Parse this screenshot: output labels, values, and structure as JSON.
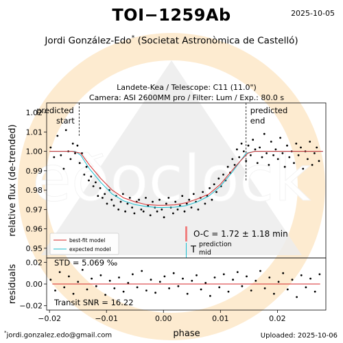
{
  "header": {
    "title": "TOI−1259Ab",
    "date": "2025-10-05",
    "author": "Jordi González-Edo",
    "author_mark": "*",
    "affiliation": "(Societat Astronòmica de Castelló)"
  },
  "subtitle": {
    "line1": "Landete-Kea / Telescope: C11 (11.0\")",
    "line2": "Camera: ASI 2600MM pro / Filter: Lum / Exp.: 80.0 s"
  },
  "footer": {
    "email_mark": "*",
    "email": "jordi.gonzalez.edo@gmail.com",
    "uploaded": "Uploaded: 2025-10-06"
  },
  "watermark": {
    "text": "eðoclock",
    "colors": {
      "orange": "#fde9cc",
      "gray": "#e8e8e8"
    }
  },
  "colors": {
    "best_fit": "#d62728",
    "expected": "#17becf",
    "points": "#000000",
    "oc_bar": "#f08080",
    "vline": "#000000"
  },
  "annotations": {
    "predicted_start": [
      "predicted",
      "start"
    ],
    "predicted_end": [
      "predicted",
      "end"
    ],
    "oc": "O-C = 1.72 ± 1.18 min",
    "tmid_main": "T",
    "tmid_sup": "prediction",
    "tmid_sub": "mid",
    "std": "STD = 5.069 ‰",
    "snr": "Transit SNR = 16.22"
  },
  "chart_data": [
    {
      "type": "scatter",
      "panel": "main",
      "xlabel": "",
      "ylabel": "relative flux (de-trended)",
      "xlim": [
        -0.0205,
        0.0285
      ],
      "ylim": [
        0.945,
        1.025
      ],
      "yticks": [
        0.95,
        0.96,
        0.97,
        0.98,
        0.99,
        1.0,
        1.01,
        1.02
      ],
      "ytick_labels": [
        "0.95",
        "0.96",
        "0.97",
        "0.98",
        "0.99",
        "1.00",
        "1.01",
        "1.02"
      ],
      "predicted_start": -0.0148,
      "predicted_end": 0.0145,
      "legend": {
        "position": "lower-left",
        "entries": [
          "best-fit model",
          "expected model"
        ]
      },
      "series": [
        {
          "name": "best-fit model",
          "style": "line",
          "x": [
            -0.02,
            -0.016,
            -0.0145,
            -0.013,
            -0.011,
            -0.009,
            -0.007,
            -0.005,
            -0.003,
            -0.001,
            0.0,
            0.002,
            0.004,
            0.006,
            0.008,
            0.01,
            0.012,
            0.0135,
            0.0148,
            0.016,
            0.02,
            0.024,
            0.028
          ],
          "y": [
            1.0,
            1.0,
            0.999,
            0.993,
            0.986,
            0.98,
            0.976,
            0.974,
            0.9725,
            0.9722,
            0.9722,
            0.9724,
            0.9735,
            0.9755,
            0.978,
            0.983,
            0.99,
            0.995,
            0.999,
            1.0,
            1.0,
            1.0,
            1.0
          ]
        },
        {
          "name": "expected model",
          "style": "line",
          "x": [
            -0.02,
            -0.0155,
            -0.0145,
            -0.013,
            -0.011,
            -0.009,
            -0.007,
            -0.005,
            -0.003,
            -0.001,
            0.0,
            0.002,
            0.004,
            0.006,
            0.008,
            0.01,
            0.012,
            0.0135,
            0.0145,
            0.016,
            0.02,
            0.024,
            0.028
          ],
          "y": [
            1.0,
            1.0,
            0.998,
            0.991,
            0.984,
            0.978,
            0.9745,
            0.9725,
            0.9715,
            0.971,
            0.971,
            0.9712,
            0.972,
            0.974,
            0.977,
            0.982,
            0.989,
            0.995,
            0.999,
            1.0,
            1.0,
            1.0,
            1.0
          ]
        },
        {
          "name": "",
          "style": "points",
          "x": [
            -0.0198,
            -0.0192,
            -0.0186,
            -0.018,
            -0.0175,
            -0.0171,
            -0.0167,
            -0.0163,
            -0.0159,
            -0.0155,
            -0.0151,
            -0.0147,
            -0.0143,
            -0.0139,
            -0.0135,
            -0.0131,
            -0.0127,
            -0.0123,
            -0.0119,
            -0.0115,
            -0.0111,
            -0.0107,
            -0.0103,
            -0.0099,
            -0.0095,
            -0.0091,
            -0.0087,
            -0.0083,
            -0.0079,
            -0.0075,
            -0.0071,
            -0.0067,
            -0.0063,
            -0.0059,
            -0.0055,
            -0.0051,
            -0.0047,
            -0.0043,
            -0.0039,
            -0.0035,
            -0.0031,
            -0.0027,
            -0.0023,
            -0.0019,
            -0.0015,
            -0.0011,
            -0.0007,
            -0.0003,
            0.0001,
            0.0005,
            0.0009,
            0.0013,
            0.0017,
            0.0021,
            0.0025,
            0.0029,
            0.0033,
            0.0037,
            0.0041,
            0.0045,
            0.0049,
            0.0053,
            0.0057,
            0.0061,
            0.0065,
            0.0069,
            0.0073,
            0.0077,
            0.0081,
            0.0085,
            0.0089,
            0.0093,
            0.0097,
            0.0101,
            0.0105,
            0.0109,
            0.0113,
            0.0117,
            0.0121,
            0.0125,
            0.0129,
            0.0133,
            0.0137,
            0.0141,
            0.0145,
            0.0149,
            0.0153,
            0.0157,
            0.0161,
            0.0165,
            0.0169,
            0.0173,
            0.0177,
            0.0181,
            0.0185,
            0.0189,
            0.0193,
            0.0197,
            0.0201,
            0.0205,
            0.0209,
            0.0213,
            0.0217,
            0.0221,
            0.0225,
            0.0229,
            0.0233,
            0.0237,
            0.0241,
            0.0245,
            0.0249,
            0.0253,
            0.0257,
            0.0261,
            0.0265,
            0.0269,
            0.0273
          ],
          "y": [
            1.002,
            0.997,
            1.008,
            0.998,
            0.991,
            1.011,
            1.0,
            0.996,
            1.004,
            0.999,
            1.003,
            0.994,
            0.999,
            0.988,
            0.992,
            0.985,
            0.987,
            0.982,
            0.984,
            0.977,
            0.981,
            0.976,
            0.978,
            0.973,
            0.98,
            0.975,
            0.972,
            0.977,
            0.97,
            0.974,
            0.978,
            0.969,
            0.973,
            0.976,
            0.971,
            0.968,
            0.974,
            0.975,
            0.97,
            0.969,
            0.976,
            0.972,
            0.967,
            0.974,
            0.971,
            0.969,
            0.975,
            0.97,
            0.966,
            0.973,
            0.976,
            0.971,
            0.968,
            0.974,
            0.97,
            0.972,
            0.977,
            0.969,
            0.973,
            0.975,
            0.971,
            0.978,
            0.974,
            0.97,
            0.976,
            0.979,
            0.973,
            0.977,
            0.981,
            0.975,
            0.983,
            0.979,
            0.986,
            0.982,
            0.988,
            0.985,
            0.992,
            0.989,
            0.996,
            0.993,
            1.001,
            0.997,
            1.004,
            1.0,
            0.995,
            1.003,
            0.998,
            1.006,
            1.001,
            0.994,
            1.002,
            0.997,
            1.009,
            0.999,
            0.993,
            1.005,
            0.998,
            1.001,
            0.996,
            1.007,
            0.999,
            0.992,
            1.003,
            0.997,
            1.0,
            0.994,
            1.004,
            0.998,
            1.002,
            0.991,
            1.0,
            0.996,
            1.005,
            0.993,
            0.999,
            1.002,
            0.995
          ]
        }
      ]
    },
    {
      "type": "scatter",
      "panel": "residuals",
      "xlabel": "phase",
      "ylabel": "residuals",
      "xlim": [
        -0.0205,
        0.0285
      ],
      "ylim": [
        -0.024,
        0.024
      ],
      "yticks": [
        -0.02,
        0.0,
        0.02
      ],
      "ytick_labels": [
        "−0.02",
        "0.00",
        "0.02"
      ],
      "xticks": [
        -0.02,
        -0.01,
        0.0,
        0.01,
        0.02
      ],
      "xtick_labels": [
        "−0.02",
        "−0.01",
        "0.00",
        "0.01",
        "0.02"
      ],
      "zero_line": 0.0,
      "series": [
        {
          "name": "",
          "style": "points",
          "x": [
            -0.0198,
            -0.019,
            -0.0182,
            -0.0174,
            -0.0166,
            -0.0158,
            -0.015,
            -0.0142,
            -0.0134,
            -0.0126,
            -0.0118,
            -0.011,
            -0.0102,
            -0.0094,
            -0.0086,
            -0.0078,
            -0.007,
            -0.0062,
            -0.0054,
            -0.0046,
            -0.0038,
            -0.003,
            -0.0022,
            -0.0014,
            -0.0006,
            0.0002,
            0.001,
            0.0018,
            0.0026,
            0.0034,
            0.0042,
            0.005,
            0.0058,
            0.0066,
            0.0074,
            0.0082,
            0.009,
            0.0098,
            0.0106,
            0.0114,
            0.0122,
            0.013,
            0.0138,
            0.0146,
            0.0154,
            0.0162,
            0.017,
            0.0178,
            0.0186,
            0.0194,
            0.0202,
            0.021,
            0.0218,
            0.0226,
            0.0234,
            0.0242,
            0.025,
            0.0258,
            0.0266,
            0.0274
          ],
          "y": [
            0.004,
            -0.006,
            0.011,
            -0.003,
            0.007,
            -0.009,
            0.002,
            0.013,
            -0.005,
            0.005,
            -0.002,
            0.008,
            -0.01,
            0.003,
            -0.004,
            0.006,
            -0.007,
            0.001,
            0.009,
            -0.003,
            0.012,
            -0.006,
            0.004,
            -0.008,
            0.002,
            0.007,
            -0.004,
            0.01,
            -0.002,
            0.005,
            -0.009,
            0.003,
            0.008,
            -0.005,
            0.001,
            -0.011,
            0.006,
            -0.003,
            0.009,
            -0.007,
            0.004,
            0.011,
            -0.002,
            0.007,
            -0.006,
            0.003,
            0.012,
            -0.004,
            0.006,
            -0.009,
            0.002,
            0.01,
            -0.005,
            0.004,
            -0.012,
            0.008,
            -0.003,
            0.005,
            -0.007,
            0.009
          ]
        }
      ]
    }
  ]
}
